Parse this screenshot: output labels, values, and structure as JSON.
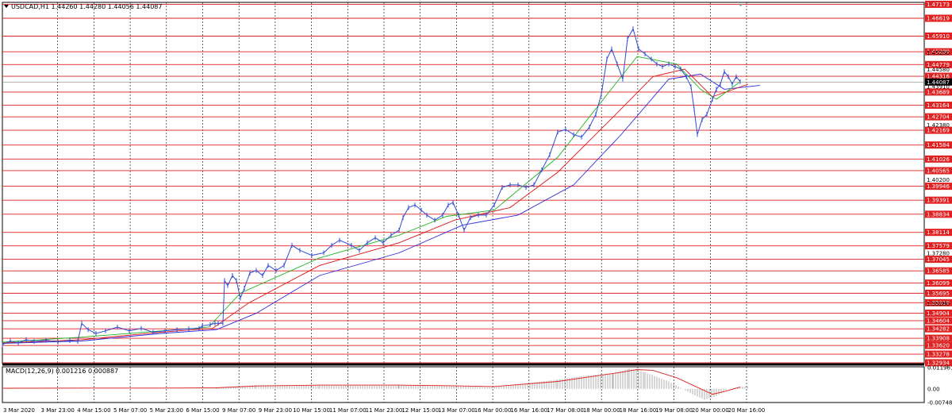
{
  "header": {
    "menu_icon": "triangle-down-icon",
    "text": "USDCAD,H1  1.44260 1.44280 1.44056 1.44087"
  },
  "macd": {
    "label": "MACD(12,26,9) 0.001216 0.000887",
    "scale_max": "0.011961",
    "scale_zero": "0.00",
    "scale_min": "-0.00748"
  },
  "colors": {
    "price": "#2f4bd6",
    "ma_fast": "#1fb31f",
    "ma_mid": "#e01414",
    "ma_slow": "#2a2ae0",
    "level_line": "#e02020",
    "level_box": "#e02020",
    "current_box": "#000000",
    "grid": "#000000",
    "macd_hist": "#9a9a9a",
    "macd_signal": "#e02020"
  },
  "chart_data": {
    "type": "line",
    "symbol": "USDCAD",
    "timeframe": "H1",
    "ylim": [
      1.329,
      1.4725
    ],
    "current_price": "1.44087",
    "price_axis_labels": [
      "1.45250",
      "1.44580",
      "1.43910",
      "1.42380",
      "1.40200",
      "1.37280",
      "1.35280"
    ],
    "level_labels": [
      "1.47173",
      "1.46619",
      "1.45910",
      "1.45289",
      "1.44779",
      "1.44316",
      "1.43689",
      "1.43164",
      "1.42704",
      "1.42169",
      "1.41584",
      "1.41026",
      "1.40565",
      "1.39946",
      "1.39391",
      "1.38834",
      "1.38114",
      "1.37579",
      "1.37045",
      "1.36585",
      "1.36099",
      "1.35695",
      "1.35318",
      "1.34904",
      "1.34604",
      "1.34282",
      "1.33908",
      "1.33620",
      "1.33278",
      "1.32934"
    ],
    "x_tick_labels": [
      "3 Mar 2020",
      "3 Mar 23:00",
      "4 Mar 15:00",
      "5 Mar 07:00",
      "5 Mar 23:00",
      "6 Mar 15:00",
      "9 Mar 07:00",
      "9 Mar 23:00",
      "10 Mar 15:00",
      "11 Mar 07:00",
      "11 Mar 23:00",
      "12 Mar 15:00",
      "13 Mar 07:00",
      "16 Mar 00:00",
      "16 Mar 16:00",
      "17 Mar 08:00",
      "18 Mar 00:00",
      "18 Mar 16:00",
      "19 Mar 08:00",
      "20 Mar 00:00",
      "20 Mar 16:00"
    ],
    "price_series": [
      [
        0,
        1.3365
      ],
      [
        10,
        1.338
      ],
      [
        20,
        1.3372
      ],
      [
        30,
        1.3385
      ],
      [
        40,
        1.3378
      ],
      [
        55,
        1.3383
      ],
      [
        70,
        1.3376
      ],
      [
        85,
        1.3382
      ],
      [
        95,
        1.3378
      ],
      [
        100,
        1.345
      ],
      [
        108,
        1.3425
      ],
      [
        118,
        1.341
      ],
      [
        130,
        1.342
      ],
      [
        145,
        1.3435
      ],
      [
        160,
        1.342
      ],
      [
        175,
        1.343
      ],
      [
        190,
        1.3415
      ],
      [
        205,
        1.342
      ],
      [
        220,
        1.3425
      ],
      [
        235,
        1.3428
      ],
      [
        248,
        1.343
      ],
      [
        252,
        1.344
      ],
      [
        262,
        1.3445
      ],
      [
        268,
        1.345
      ],
      [
        272,
        1.345
      ],
      [
        278,
        1.345
      ],
      [
        280,
        1.362
      ],
      [
        284,
        1.36
      ],
      [
        290,
        1.364
      ],
      [
        295,
        1.362
      ],
      [
        300,
        1.355
      ],
      [
        305,
        1.359
      ],
      [
        312,
        1.365
      ],
      [
        320,
        1.366
      ],
      [
        328,
        1.364
      ],
      [
        335,
        1.368
      ],
      [
        345,
        1.366
      ],
      [
        355,
        1.368
      ],
      [
        365,
        1.376
      ],
      [
        375,
        1.374
      ],
      [
        390,
        1.372
      ],
      [
        405,
        1.373
      ],
      [
        415,
        1.376
      ],
      [
        425,
        1.378
      ],
      [
        440,
        1.376
      ],
      [
        450,
        1.374
      ],
      [
        460,
        1.377
      ],
      [
        470,
        1.379
      ],
      [
        480,
        1.377
      ],
      [
        490,
        1.38
      ],
      [
        500,
        1.382
      ],
      [
        505,
        1.387
      ],
      [
        512,
        1.391
      ],
      [
        520,
        1.392
      ],
      [
        528,
        1.39
      ],
      [
        535,
        1.388
      ],
      [
        545,
        1.386
      ],
      [
        555,
        1.388
      ],
      [
        562,
        1.392
      ],
      [
        568,
        1.393
      ],
      [
        575,
        1.388
      ],
      [
        582,
        1.382
      ],
      [
        590,
        1.387
      ],
      [
        600,
        1.388
      ],
      [
        610,
        1.388
      ],
      [
        620,
        1.392
      ],
      [
        630,
        1.399
      ],
      [
        640,
        1.4
      ],
      [
        650,
        1.4
      ],
      [
        660,
        1.399
      ],
      [
        670,
        1.4
      ],
      [
        680,
        1.406
      ],
      [
        690,
        1.412
      ],
      [
        700,
        1.421
      ],
      [
        710,
        1.422
      ],
      [
        720,
        1.42
      ],
      [
        730,
        1.419
      ],
      [
        740,
        1.423
      ],
      [
        748,
        1.428
      ],
      [
        755,
        1.436
      ],
      [
        762,
        1.45
      ],
      [
        768,
        1.454
      ],
      [
        775,
        1.448
      ],
      [
        782,
        1.442
      ],
      [
        788,
        1.458
      ],
      [
        795,
        1.462
      ],
      [
        802,
        1.454
      ],
      [
        810,
        1.452
      ],
      [
        818,
        1.45
      ],
      [
        825,
        1.448
      ],
      [
        832,
        1.447
      ],
      [
        840,
        1.448
      ],
      [
        848,
        1.447
      ],
      [
        855,
        1.446
      ],
      [
        862,
        1.443
      ],
      [
        868,
        1.439
      ],
      [
        872,
        1.43
      ],
      [
        876,
        1.42
      ],
      [
        882,
        1.426
      ],
      [
        888,
        1.428
      ],
      [
        895,
        1.434
      ],
      [
        900,
        1.438
      ],
      [
        905,
        1.44
      ],
      [
        910,
        1.445
      ],
      [
        915,
        1.443
      ],
      [
        920,
        1.44
      ],
      [
        925,
        1.443
      ],
      [
        930,
        1.441
      ]
    ],
    "ma_fast": [
      [
        0,
        1.3375
      ],
      [
        100,
        1.3395
      ],
      [
        200,
        1.342
      ],
      [
        260,
        1.3435
      ],
      [
        300,
        1.357
      ],
      [
        400,
        1.371
      ],
      [
        500,
        1.38
      ],
      [
        560,
        1.3875
      ],
      [
        620,
        1.39
      ],
      [
        700,
        1.411
      ],
      [
        760,
        1.435
      ],
      [
        800,
        1.451
      ],
      [
        850,
        1.448
      ],
      [
        880,
        1.438
      ],
      [
        900,
        1.434
      ],
      [
        930,
        1.441
      ]
    ],
    "ma_mid": [
      [
        0,
        1.3372
      ],
      [
        100,
        1.3385
      ],
      [
        200,
        1.3415
      ],
      [
        265,
        1.343
      ],
      [
        310,
        1.353
      ],
      [
        400,
        1.368
      ],
      [
        500,
        1.377
      ],
      [
        570,
        1.386
      ],
      [
        640,
        1.391
      ],
      [
        700,
        1.405
      ],
      [
        770,
        1.427
      ],
      [
        820,
        1.443
      ],
      [
        860,
        1.446
      ],
      [
        895,
        1.435
      ],
      [
        940,
        1.44
      ]
    ],
    "ma_slow": [
      [
        0,
        1.337
      ],
      [
        100,
        1.338
      ],
      [
        200,
        1.341
      ],
      [
        270,
        1.3425
      ],
      [
        320,
        1.349
      ],
      [
        400,
        1.364
      ],
      [
        500,
        1.373
      ],
      [
        580,
        1.384
      ],
      [
        650,
        1.388
      ],
      [
        720,
        1.4
      ],
      [
        780,
        1.42
      ],
      [
        840,
        1.442
      ],
      [
        880,
        1.444
      ],
      [
        910,
        1.438
      ],
      [
        955,
        1.4395
      ]
    ],
    "macd_hist": [
      [
        0,
        0.0002
      ],
      [
        100,
        0.0004
      ],
      [
        200,
        0.0003
      ],
      [
        270,
        0.0006
      ],
      [
        320,
        0.002
      ],
      [
        400,
        0.0018
      ],
      [
        500,
        0.002
      ],
      [
        560,
        0.0015
      ],
      [
        620,
        0.001
      ],
      [
        700,
        0.005
      ],
      [
        730,
        0.007
      ],
      [
        770,
        0.0085
      ],
      [
        790,
        0.011
      ],
      [
        810,
        0.009
      ],
      [
        840,
        0.004
      ],
      [
        870,
        -0.003
      ],
      [
        885,
        -0.006
      ],
      [
        900,
        -0.004
      ],
      [
        915,
        0.0
      ],
      [
        930,
        0.0012
      ]
    ],
    "macd_signal": [
      [
        0,
        0.0003
      ],
      [
        100,
        0.0004
      ],
      [
        200,
        0.0004
      ],
      [
        270,
        0.0005
      ],
      [
        320,
        0.0015
      ],
      [
        400,
        0.002
      ],
      [
        500,
        0.002
      ],
      [
        560,
        0.0017
      ],
      [
        620,
        0.0012
      ],
      [
        700,
        0.004
      ],
      [
        740,
        0.0065
      ],
      [
        780,
        0.009
      ],
      [
        800,
        0.0105
      ],
      [
        820,
        0.01
      ],
      [
        850,
        0.006
      ],
      [
        880,
        0.0
      ],
      [
        895,
        -0.003
      ],
      [
        910,
        -0.0015
      ],
      [
        930,
        0.0009
      ]
    ],
    "macd_ylim": [
      -0.0075,
      0.012
    ]
  }
}
